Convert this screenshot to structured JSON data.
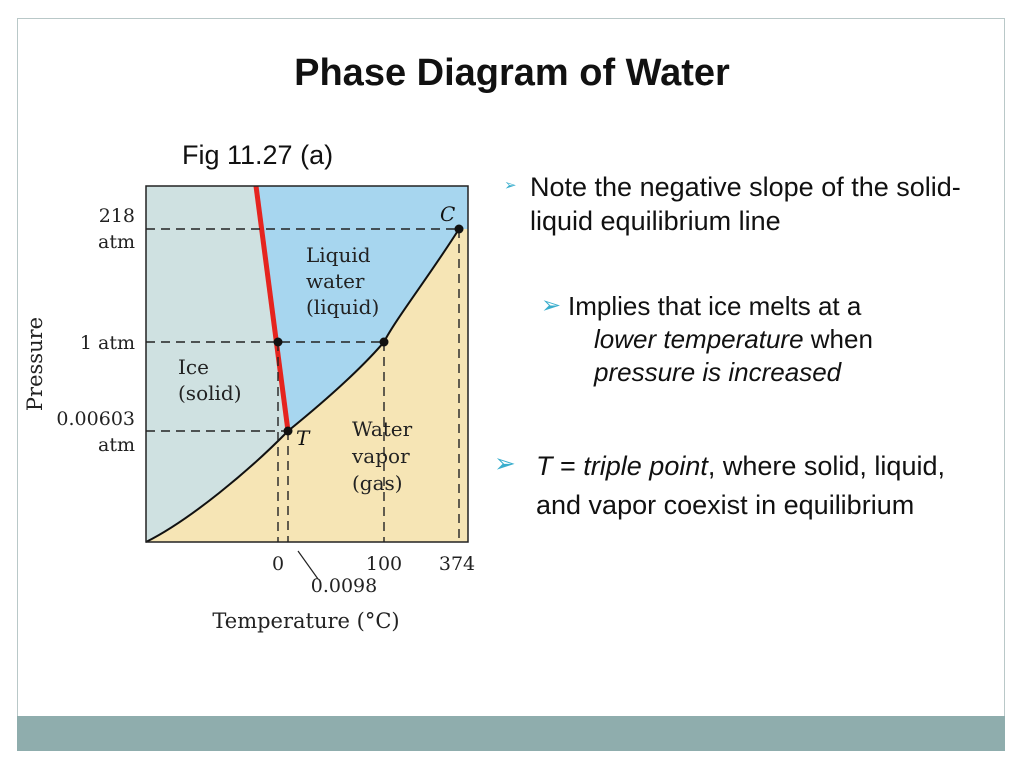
{
  "slide": {
    "title": "Phase Diagram of Water",
    "figure_caption": "Fig 11.27 (a)"
  },
  "diagram": {
    "y_axis_label": "Pressure",
    "x_axis_label": "Temperature (°C)",
    "y_ticks": {
      "p218_line1": "218",
      "p218_line2": "atm",
      "p1": "1 atm",
      "p00603_line1": "0.00603",
      "p00603_line2": "atm"
    },
    "x_ticks": {
      "t0": "0",
      "t00098": "0.0098",
      "t100": "100",
      "t374": "374"
    },
    "regions": {
      "liquid": [
        "Liquid",
        "water",
        "(liquid)"
      ],
      "ice": [
        "Ice",
        "(solid)"
      ],
      "vapor": [
        "Water",
        "vapor",
        "(gas)"
      ]
    },
    "points": {
      "critical": "C",
      "triple": "T"
    },
    "colors": {
      "solid_region": "#cfe1e1",
      "liquid_region": "#a7d6ef",
      "vapor_region": "#f6e5b5",
      "solid_liquid_line": "#e5241f"
    }
  },
  "bullets": {
    "b1": "Note the negative slope of the solid-liquid equilibrium line",
    "b2_pre": "Implies that ice melts at a",
    "b2_em1": "lower temperature",
    "b2_mid": " when",
    "b2_em2": "pressure is increased",
    "b3_em1": "T",
    "b3_mid1": " = ",
    "b3_em2": "triple point",
    "b3_rest": ", where solid, liquid, and vapor coexist in equilibrium"
  }
}
